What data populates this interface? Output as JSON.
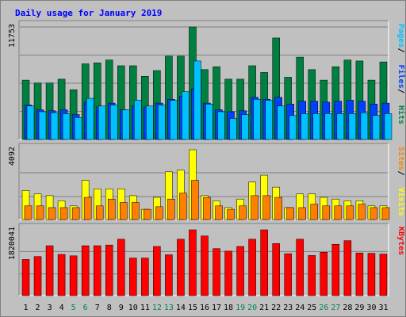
{
  "chart_data": {
    "type": "bar",
    "title": "Daily usage for January 2019",
    "x": [
      "1",
      "2",
      "3",
      "4",
      "5",
      "6",
      "7",
      "8",
      "9",
      "10",
      "11",
      "12",
      "13",
      "14",
      "15",
      "16",
      "17",
      "18",
      "19",
      "20",
      "21",
      "22",
      "23",
      "24",
      "25",
      "26",
      "27",
      "28",
      "29",
      "30",
      "31"
    ],
    "weekend_days": [
      "5",
      "6",
      "12",
      "13",
      "19",
      "20",
      "26",
      "27"
    ],
    "panels": [
      {
        "name": "top",
        "ymax_label": "11753",
        "ylim": [
          0,
          11753
        ],
        "legend": [
          {
            "name": "Pages",
            "color": "#00c0ff"
          },
          {
            "name": "Files",
            "color": "#0040ff"
          },
          {
            "name": "Hits",
            "color": "#008040"
          }
        ],
        "series": [
          {
            "name": "Hits",
            "color": "#008040",
            "values": [
              6200,
              5900,
              5900,
              6300,
              5200,
              7900,
              8000,
              8300,
              7700,
              7700,
              6600,
              7200,
              8700,
              8700,
              11753,
              7300,
              7600,
              6300,
              6300,
              7700,
              7000,
              10600,
              6500,
              8600,
              7300,
              6200,
              7600,
              8300,
              8200,
              6200,
              8100
            ]
          },
          {
            "name": "Files",
            "color": "#0040ff",
            "values": [
              3600,
              3100,
              3000,
              3100,
              2600,
              3900,
              3400,
              3800,
              3100,
              3500,
              3400,
              3800,
              4200,
              4500,
              5300,
              3800,
              3100,
              2900,
              3000,
              4400,
              4200,
              4400,
              3700,
              4000,
              4000,
              3900,
              4000,
              4100,
              4000,
              3700,
              3800
            ]
          },
          {
            "name": "Pages",
            "color": "#00c0ff",
            "values": [
              3500,
              2900,
              2800,
              2700,
              2300,
              4300,
              3500,
              3600,
              3100,
              4100,
              3500,
              3600,
              4100,
              5000,
              8200,
              3700,
              2900,
              2200,
              2600,
              4200,
              4100,
              3500,
              2500,
              2700,
              2700,
              2700,
              2700,
              2700,
              2800,
              2500,
              2700
            ]
          }
        ]
      },
      {
        "name": "middle",
        "ymax_label": "4092",
        "ylim": [
          0,
          4092
        ],
        "legend": [
          {
            "name": "Sites",
            "color": "#ff8000"
          },
          {
            "name": "Visits",
            "color": "#ffff00"
          }
        ],
        "series": [
          {
            "name": "Visits",
            "color": "#ffff00",
            "values": [
              1700,
              1500,
              1400,
              1100,
              800,
              2300,
              1800,
              1800,
              1800,
              1400,
              600,
              1300,
              2800,
              2900,
              4092,
              1400,
              1100,
              700,
              1200,
              2200,
              2600,
              1900,
              700,
              1500,
              1500,
              1300,
              1200,
              1100,
              1100,
              800,
              800
            ]
          },
          {
            "name": "Sites",
            "color": "#ff8000",
            "values": [
              800,
              800,
              700,
              700,
              700,
              1300,
              800,
              1200,
              1000,
              1000,
              600,
              750,
              1200,
              1550,
              2300,
              1300,
              800,
              600,
              800,
              1400,
              1400,
              1300,
              700,
              700,
              900,
              800,
              800,
              800,
              900,
              700,
              700
            ]
          }
        ]
      },
      {
        "name": "bottom",
        "ymax_label": "1820041",
        "ylim": [
          0,
          1820041
        ],
        "legend": [
          {
            "name": "KBytes",
            "color": "#ff0000"
          }
        ],
        "series": [
          {
            "name": "KBytes",
            "color": "#ff0000",
            "values": [
              1000000,
              1080000,
              1380000,
              1140000,
              1100000,
              1380000,
              1380000,
              1400000,
              1560000,
              1040000,
              1040000,
              1360000,
              1130000,
              1560000,
              1820041,
              1650000,
              1300000,
              1230000,
              1360000,
              1560000,
              1820041,
              1440000,
              1160000,
              1560000,
              1110000,
              1200000,
              1420000,
              1520000,
              1180000,
              1170000,
              1150000
            ]
          }
        ]
      }
    ]
  }
}
